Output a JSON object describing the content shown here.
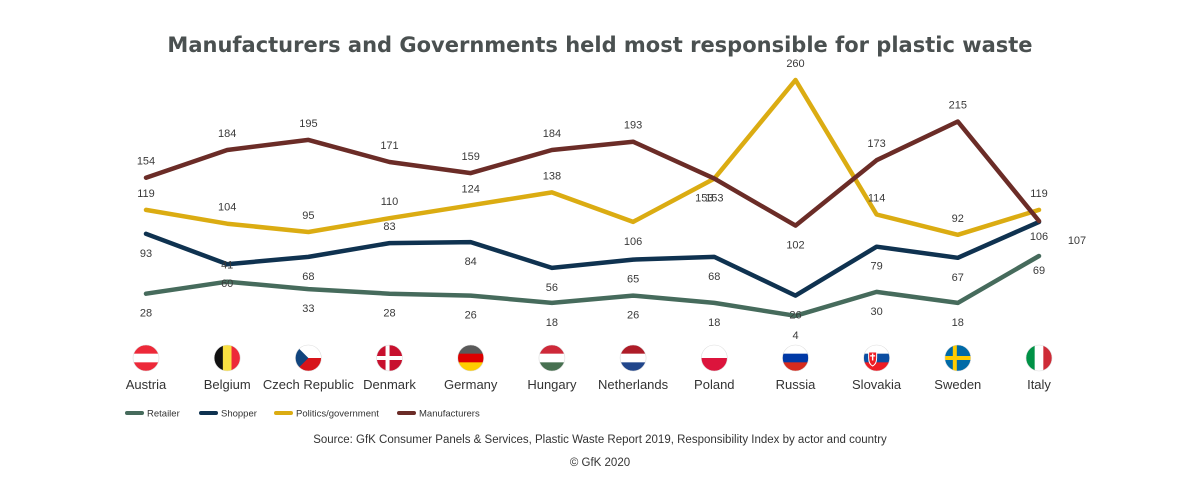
{
  "chart_data": {
    "type": "line",
    "title": "Manufacturers and Governments held most responsible for plastic waste",
    "categories": [
      "Austria",
      "Belgium",
      "Czech Republic",
      "Denmark",
      "Germany",
      "Hungary",
      "Netherlands",
      "Poland",
      "Russia",
      "Slovakia",
      "Sweden",
      "Italy"
    ],
    "series": [
      {
        "name": "Retailer",
        "color": "#466b5c",
        "values": [
          28,
          41,
          33,
          28,
          26,
          18,
          26,
          18,
          4,
          30,
          18,
          69
        ]
      },
      {
        "name": "Shopper",
        "color": "#0f3250",
        "values": [
          93,
          60,
          68,
          83,
          84,
          56,
          65,
          68,
          26,
          79,
          67,
          106
        ]
      },
      {
        "name": "Politics/government",
        "color": "#dbac12",
        "values": [
          119,
          104,
          95,
          110,
          124,
          138,
          106,
          153,
          260,
          114,
          92,
          119
        ]
      },
      {
        "name": "Manufacturers",
        "color": "#6b2c27",
        "values": [
          154,
          184,
          195,
          171,
          159,
          184,
          193,
          153,
          102,
          173,
          215,
          107
        ]
      }
    ],
    "flags": [
      "austria-flag-icon",
      "belgium-flag-icon",
      "czech-republic-flag-icon",
      "denmark-flag-icon",
      "germany-flag-icon",
      "hungary-flag-icon",
      "netherlands-flag-icon",
      "poland-flag-icon",
      "russia-flag-icon",
      "slovakia-flag-icon",
      "sweden-flag-icon",
      "italy-flag-icon"
    ],
    "legend_position": "bottom-left",
    "grid": false,
    "source": "Source: GfK Consumer Panels & Services, Plastic Waste Report 2019, Responsibility Index by actor and country",
    "copyright": "© GfK 2020"
  }
}
